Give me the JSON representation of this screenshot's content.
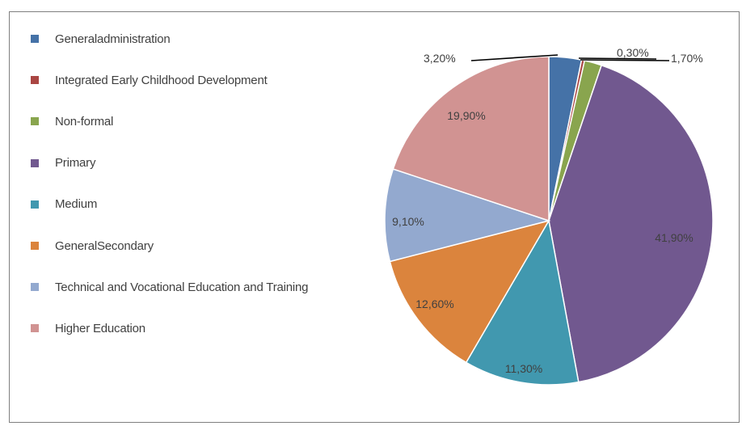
{
  "chart_data": {
    "type": "pie",
    "title": "",
    "categories": [
      "Generaladministration",
      "Integrated Early Childhood Development",
      "Non-formal",
      "Primary",
      "Medium",
      "GeneralSecondary",
      "Technical and Vocational Education and Training",
      "Higher Education"
    ],
    "values": [
      3.2,
      0.3,
      1.7,
      41.9,
      11.3,
      12.6,
      9.1,
      19.9
    ],
    "labels": [
      "3,20%",
      "0,30%",
      "1,70%",
      "41,90%",
      "11,30%",
      "12,60%",
      "9,10%",
      "19,90%"
    ],
    "colors": [
      "#4572a7",
      "#aa4643",
      "#89a54e",
      "#71588f",
      "#4198af",
      "#db843d",
      "#93a9cf",
      "#d19392"
    ],
    "legend_position": "left"
  }
}
